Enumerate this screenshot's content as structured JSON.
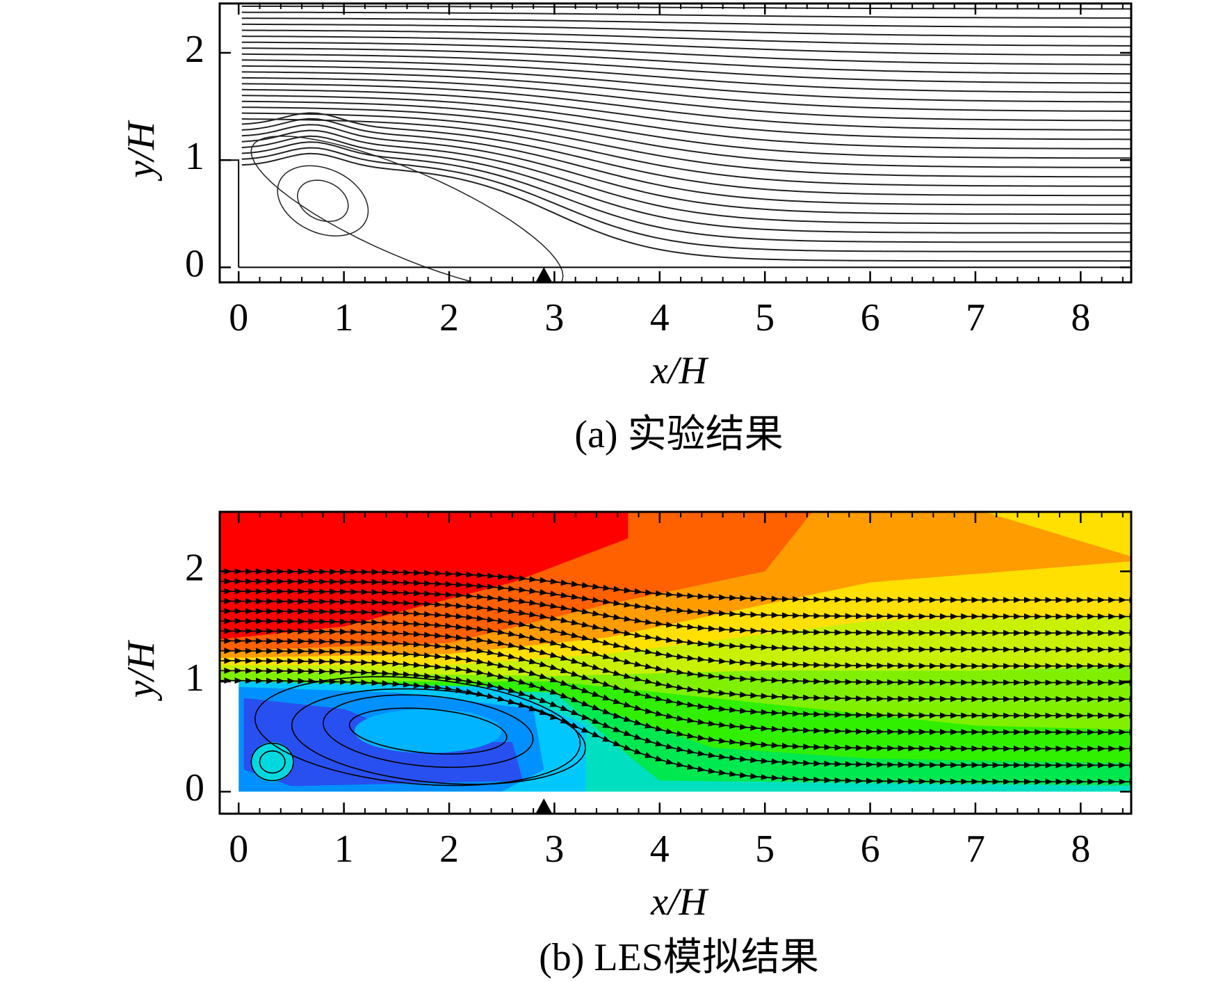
{
  "chart_data": [
    {
      "type": "streamline",
      "variant": "experiment",
      "caption": "(a) 实验结果",
      "xlabel": "x/H",
      "ylabel": "y/H",
      "xlim": [
        -0.18,
        8.48
      ],
      "ylim": [
        -0.14,
        2.46
      ],
      "xticks": [
        0,
        1,
        2,
        3,
        4,
        5,
        6,
        7,
        8
      ],
      "yticks": [
        0,
        1,
        2
      ]
    },
    {
      "type": "streamline",
      "variant": "les",
      "caption": "(b) LES模拟结果",
      "xlabel": "x/H",
      "ylabel": "y/H",
      "xlim": [
        -0.18,
        8.48
      ],
      "ylim": [
        -0.2,
        2.54
      ],
      "xticks": [
        0,
        1,
        2,
        3,
        4,
        5,
        6,
        7,
        8
      ],
      "yticks": [
        0,
        1,
        2
      ]
    }
  ]
}
